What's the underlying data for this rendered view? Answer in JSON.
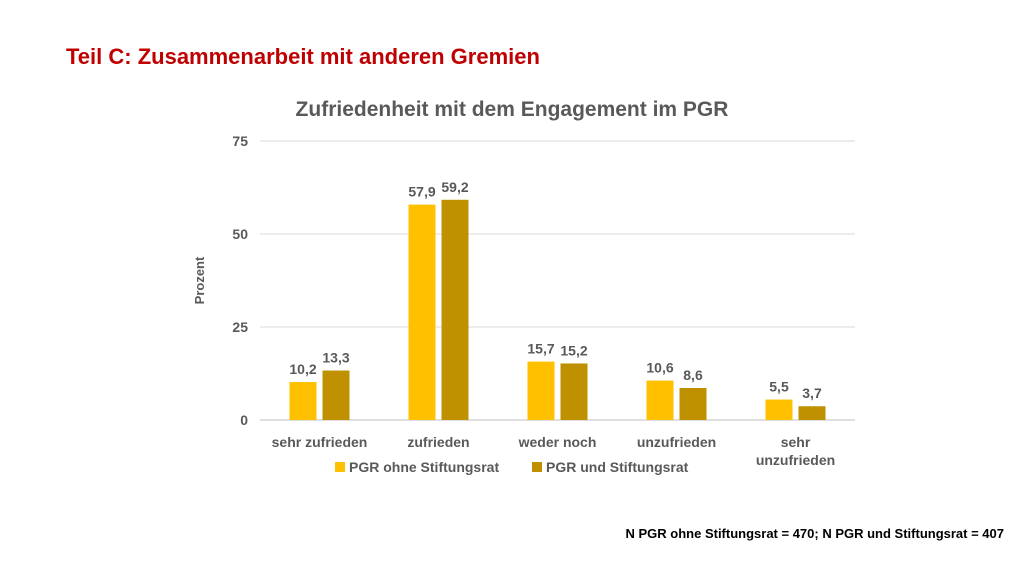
{
  "slide": {
    "title": "Teil C: Zusammenarbeit mit anderen Gremien",
    "title_color": "#c00000",
    "footnote": "N PGR ohne Stiftungsrat = 470; N PGR und Stiftungsrat = 407"
  },
  "chart_data": {
    "type": "bar",
    "title": "Zufriedenheit mit dem Engagement im PGR",
    "xlabel": "",
    "ylabel": "Prozent",
    "ylim": [
      0,
      75
    ],
    "yticks": [
      0,
      25,
      50,
      75
    ],
    "grid": true,
    "legend_position": "bottom",
    "categories": [
      "sehr zufrieden",
      "zufrieden",
      "weder noch",
      "unzufrieden",
      "sehr unzufrieden"
    ],
    "series": [
      {
        "name": "PGR ohne Stiftungsrat",
        "color": "#ffc000",
        "values": [
          10.2,
          57.9,
          15.7,
          10.6,
          5.5
        ],
        "labels": [
          "10,2",
          "57,9",
          "15,7",
          "10,6",
          "5,5"
        ]
      },
      {
        "name": "PGR und Stiftungsrat",
        "color": "#bf9000",
        "values": [
          13.3,
          59.2,
          15.2,
          8.6,
          3.7
        ],
        "labels": [
          "13,3",
          "59,2",
          "15,2",
          "8,6",
          "3,7"
        ]
      }
    ]
  }
}
